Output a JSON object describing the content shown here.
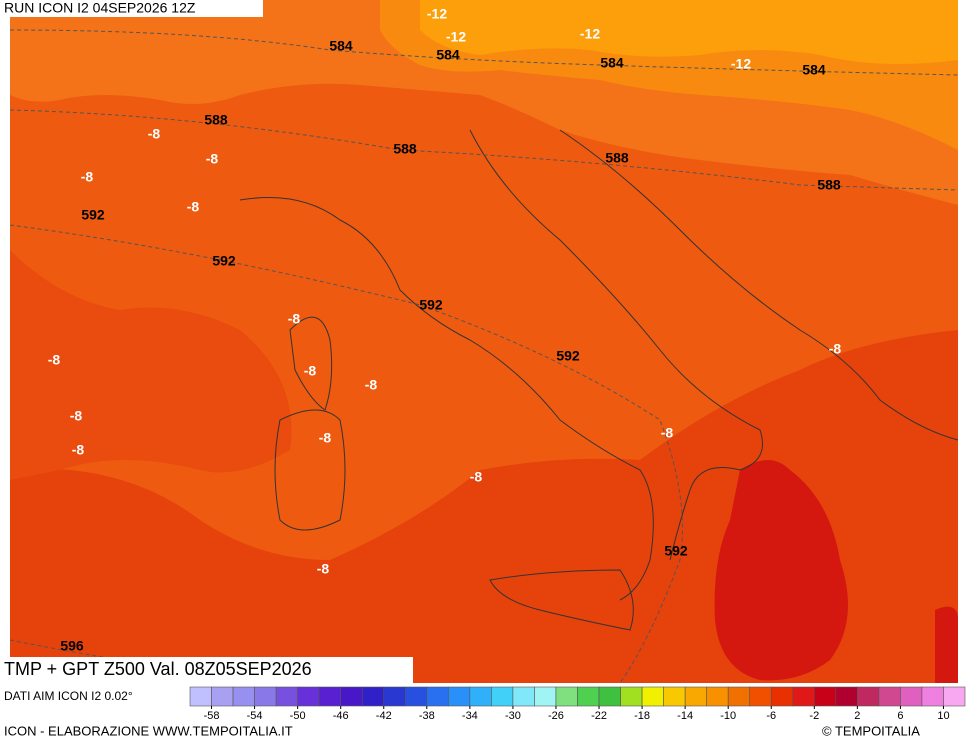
{
  "header": "RUN ICON I2 04SEP2026 12Z",
  "map": {
    "labels": [
      "-12",
      "584",
      "-12",
      "584",
      "-12",
      "584",
      "-12",
      "584",
      "588",
      "-8",
      "-8",
      "588",
      "588",
      "-8",
      "-8",
      "588",
      "592",
      "592",
      "592",
      "-8",
      "-8",
      "-8",
      "592",
      "-8",
      "-8",
      "-8",
      "-8",
      "-8",
      "-8",
      "-8",
      "592",
      "-8",
      "596"
    ]
  },
  "footer": {
    "title": "TMP + GPT Z500 Val. 08Z05SEP2026",
    "data_source": "DATI AIM ICON I2 0.02°",
    "credits": "ICON - ELABORAZIONE WWW.TEMPOITALIA.IT",
    "copyright": "© TEMPOITALIA"
  },
  "legend": {
    "labels": [
      -58,
      -54,
      -50,
      -46,
      -42,
      -38,
      -34,
      -30,
      -26,
      -22,
      -18,
      -14,
      -10,
      -6,
      -2,
      2,
      6,
      10
    ],
    "colors": [
      "#c0c0ff",
      "#a8a0f0",
      "#9890f0",
      "#8878e8",
      "#7850e0",
      "#6830d8",
      "#5820d0",
      "#4818c8",
      "#3020c8",
      "#2838d0",
      "#2850e0",
      "#2870f0",
      "#2890f8",
      "#30b0f8",
      "#40d0f8",
      "#80e8f8",
      "#a0f4f4",
      "#80e080",
      "#50d050",
      "#40c040",
      "#a0e020",
      "#f0f000",
      "#f8c800",
      "#f8a800",
      "#f89000",
      "#f07000",
      "#f05000",
      "#e83000",
      "#e01818",
      "#c80018",
      "#b00030",
      "#c02860",
      "#d04890",
      "#e060c0",
      "#f080e0",
      "#f8a8f0"
    ]
  }
}
